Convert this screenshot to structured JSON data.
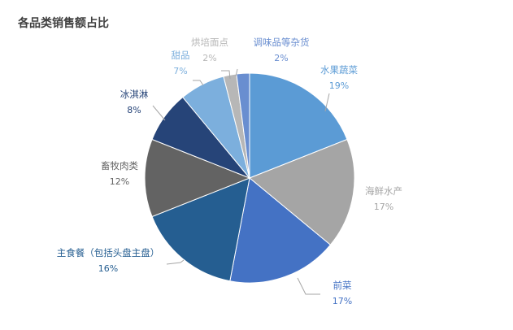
{
  "chart_data": {
    "type": "pie",
    "title": "各品类销售额占比",
    "start": "top",
    "direction": "clockwise",
    "slices": [
      {
        "label": "水果蔬菜",
        "value": 19,
        "pct": "19%",
        "color": "#5b9bd5"
      },
      {
        "label": "海鲜水产",
        "value": 17,
        "pct": "17%",
        "color": "#a5a5a5"
      },
      {
        "label": "前菜",
        "value": 17,
        "pct": "17%",
        "color": "#4472c4"
      },
      {
        "label": "主食餐（包括头盘主盘）",
        "value": 16,
        "pct": "16%",
        "color": "#255e91"
      },
      {
        "label": "畜牧肉类",
        "value": 12,
        "pct": "12%",
        "color": "#636363"
      },
      {
        "label": "冰淇淋",
        "value": 8,
        "pct": "8%",
        "color": "#264478"
      },
      {
        "label": "甜品",
        "value": 7,
        "pct": "7%",
        "color": "#7cafdd"
      },
      {
        "label": "烘培面点",
        "value": 2,
        "pct": "2%",
        "color": "#b7b7b7"
      },
      {
        "label": "调味品等杂货",
        "value": 2,
        "pct": "2%",
        "color": "#698ed0"
      }
    ]
  }
}
